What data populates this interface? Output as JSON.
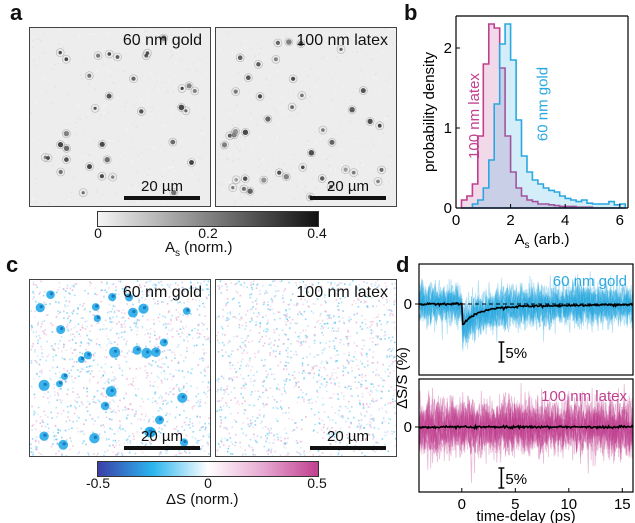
{
  "panel_labels": {
    "a": "a",
    "b": "b",
    "c": "c",
    "d": "d"
  },
  "panel_a": {
    "left_title": "60 nm gold",
    "right_title": "100 nm latex",
    "scalebar": "20 µm",
    "colorbar": {
      "label": "A",
      "label_sub": "s",
      "label_suffix": " (norm.)",
      "ticks": [
        "0",
        "0.2",
        "0.4"
      ],
      "colors": [
        "#f4f4f4",
        "#111111"
      ]
    }
  },
  "panel_c": {
    "left_title": "60 nm gold",
    "right_title": "100 nm latex",
    "scalebar": "20 µm",
    "colorbar": {
      "label": "ΔS (norm.)",
      "ticks": [
        "-0.5",
        "0",
        "0.5"
      ],
      "colors": [
        "#3b3fa8",
        "#2bb6ee",
        "#ffffff",
        "#e7a9d2",
        "#c0408f"
      ]
    }
  },
  "panel_d": {
    "top_label": "60 nm gold",
    "bottom_label": "100 nm latex",
    "ylabel": "ΔS/S (%)",
    "xlabel": "time-delay (ps)",
    "ytick": "0",
    "scale_label": "5%",
    "xticks": [
      "0",
      "5",
      "10",
      "15"
    ],
    "colors": {
      "gold": "#2aa8e0",
      "latex": "#c0408f",
      "mean": "#000000"
    }
  },
  "chart_data": [
    {
      "type": "area",
      "title": "",
      "xlabel": "A",
      "xlabel_sub": "s",
      "xlabel_suffix": " (arb.)",
      "ylabel": "probability density",
      "xlim": [
        0,
        6.3
      ],
      "ylim": [
        0,
        2.4
      ],
      "xticks": [
        "0",
        "2",
        "4",
        "6"
      ],
      "yticks": [
        "0",
        "1",
        "2"
      ],
      "bin_width": 0.2,
      "bin_edges": [
        0.2,
        0.4,
        0.6,
        0.8,
        1.0,
        1.2,
        1.4,
        1.6,
        1.8,
        2.0,
        2.2,
        2.4,
        2.6,
        2.8,
        3.0,
        3.2,
        3.4,
        3.6,
        3.8,
        4.0,
        4.2,
        4.4,
        4.6,
        4.8,
        5.0,
        5.2,
        5.4,
        5.6,
        5.8,
        6.0,
        6.2
      ],
      "series": [
        {
          "name": "100 nm latex",
          "color": "#c0408f",
          "values": [
            0.1,
            0.15,
            0.3,
            0.9,
            1.8,
            2.3,
            2.25,
            1.75,
            0.9,
            0.45,
            0.25,
            0.15,
            0.1,
            0.08,
            0.05,
            0.05,
            0.04,
            0.03,
            0.02,
            0.02,
            0.02,
            0.01,
            0.01,
            0.01,
            0,
            0,
            0,
            0,
            0,
            0
          ]
        },
        {
          "name": "60 nm gold",
          "color": "#2aa8e0",
          "values": [
            0,
            0,
            0.05,
            0.1,
            0.25,
            0.6,
            1.3,
            2.05,
            2.3,
            1.85,
            1.1,
            0.65,
            0.45,
            0.35,
            0.3,
            0.25,
            0.22,
            0.2,
            0.15,
            0.12,
            0.1,
            0.08,
            0.1,
            0.06,
            0.05,
            0.05,
            0.05,
            0.08,
            0.04,
            0.05
          ]
        }
      ]
    }
  ]
}
